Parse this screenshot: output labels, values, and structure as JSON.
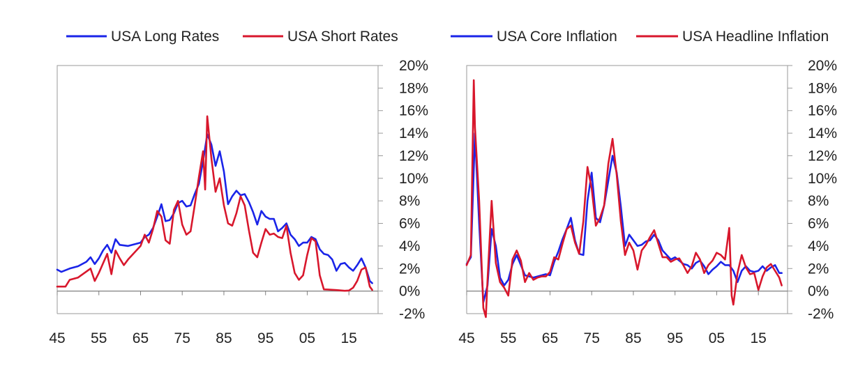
{
  "chart_data": [
    {
      "type": "line",
      "title": "",
      "xlabel": "",
      "ylabel": "",
      "xlim": [
        1945,
        2022
      ],
      "ylim": [
        -2,
        20
      ],
      "x_ticks": [
        1945,
        1955,
        1965,
        1975,
        1985,
        1995,
        2005,
        2015
      ],
      "x_tick_labels": [
        "45",
        "55",
        "65",
        "75",
        "85",
        "95",
        "05",
        "15"
      ],
      "y_ticks": [
        -2,
        0,
        2,
        4,
        6,
        8,
        10,
        12,
        14,
        16,
        18,
        20
      ],
      "y_tick_labels": [
        "-2%",
        "0%",
        "2%",
        "4%",
        "6%",
        "8%",
        "10%",
        "12%",
        "14%",
        "16%",
        "18%",
        "20%"
      ],
      "y_axis_side": "right",
      "legend": "top",
      "grid": false,
      "series": [
        {
          "name": "USA Long Rates",
          "color": "#1a24e8",
          "x": [
            1945,
            1946,
            1948,
            1950,
            1952,
            1953,
            1954,
            1955,
            1956,
            1957,
            1958,
            1959,
            1960,
            1962,
            1964,
            1965,
            1966,
            1967,
            1968,
            1969,
            1970,
            1971,
            1972,
            1973,
            1974,
            1975,
            1976,
            1977,
            1978,
            1979,
            1980,
            1981,
            1982,
            1983,
            1984,
            1985,
            1986,
            1987,
            1988,
            1989,
            1990,
            1991,
            1992,
            1993,
            1994,
            1995,
            1996,
            1997,
            1998,
            1999,
            2000,
            2001,
            2002,
            2003,
            2004,
            2005,
            2006,
            2007,
            2008,
            2009,
            2010,
            2011,
            2012,
            2013,
            2014,
            2015,
            2016,
            2017,
            2018,
            2019,
            2020,
            2020.6
          ],
          "y": [
            1.9,
            1.7,
            2.0,
            2.2,
            2.6,
            3.0,
            2.4,
            2.9,
            3.6,
            4.1,
            3.4,
            4.6,
            4.1,
            4.0,
            4.2,
            4.3,
            4.8,
            5.0,
            5.6,
            6.6,
            7.7,
            6.2,
            6.3,
            6.9,
            7.8,
            8.0,
            7.5,
            7.6,
            8.6,
            9.5,
            11.5,
            13.9,
            13.0,
            11.1,
            12.4,
            10.6,
            7.7,
            8.4,
            8.9,
            8.5,
            8.6,
            7.9,
            7.0,
            5.9,
            7.1,
            6.6,
            6.4,
            6.4,
            5.3,
            5.6,
            6.0,
            5.0,
            4.6,
            4.0,
            4.3,
            4.3,
            4.8,
            4.6,
            3.7,
            3.3,
            3.2,
            2.8,
            1.8,
            2.4,
            2.5,
            2.1,
            1.8,
            2.3,
            2.9,
            2.1,
            0.9,
            0.7
          ]
        },
        {
          "name": "USA Short Rates",
          "color": "#d8172c",
          "x": [
            1945,
            1947,
            1948,
            1950,
            1953,
            1954,
            1955,
            1957,
            1958,
            1959,
            1960,
            1961,
            1962,
            1964,
            1965,
            1966,
            1967,
            1968,
            1969,
            1970,
            1971,
            1972,
            1973,
            1974,
            1975,
            1976,
            1977,
            1978,
            1979,
            1980,
            1980.5,
            1981,
            1982,
            1983,
            1984,
            1985,
            1986,
            1987,
            1988,
            1989,
            1990,
            1991,
            1992,
            1993,
            1994,
            1995,
            1996,
            1997,
            1998,
            1999,
            2000,
            2001,
            2002,
            2003,
            2004,
            2005,
            2006,
            2007,
            2008,
            2009,
            2010,
            2012,
            2014,
            2015,
            2016,
            2017,
            2018,
            2019,
            2020,
            2020.6
          ],
          "y": [
            0.4,
            0.4,
            1.0,
            1.2,
            2.0,
            0.9,
            1.6,
            3.3,
            1.5,
            3.6,
            2.9,
            2.3,
            2.8,
            3.6,
            4.0,
            5.0,
            4.3,
            5.5,
            7.1,
            6.6,
            4.5,
            4.2,
            7.2,
            8.0,
            5.9,
            5.0,
            5.3,
            7.6,
            10.1,
            12.4,
            9.0,
            15.5,
            11.8,
            8.8,
            10.0,
            7.6,
            6.0,
            5.8,
            6.9,
            8.4,
            7.6,
            5.4,
            3.4,
            3.0,
            4.3,
            5.5,
            5.0,
            5.1,
            4.8,
            4.7,
            5.8,
            3.4,
            1.6,
            1.0,
            1.4,
            3.2,
            4.7,
            4.4,
            1.4,
            0.15,
            0.14,
            0.09,
            0.03,
            0.05,
            0.3,
            0.9,
            1.9,
            2.1,
            0.4,
            0.1
          ]
        }
      ]
    },
    {
      "type": "line",
      "title": "",
      "xlabel": "",
      "ylabel": "",
      "xlim": [
        1945,
        2022
      ],
      "ylim": [
        -2,
        20
      ],
      "x_ticks": [
        1945,
        1955,
        1965,
        1975,
        1985,
        1995,
        2005,
        2015
      ],
      "x_tick_labels": [
        "45",
        "55",
        "65",
        "75",
        "85",
        "95",
        "05",
        "15"
      ],
      "y_ticks": [
        -2,
        0,
        2,
        4,
        6,
        8,
        10,
        12,
        14,
        16,
        18,
        20
      ],
      "y_tick_labels": [
        "-2%",
        "0%",
        "2%",
        "4%",
        "6%",
        "8%",
        "10%",
        "12%",
        "14%",
        "16%",
        "18%",
        "20%"
      ],
      "y_axis_side": "right",
      "legend": "top",
      "grid": false,
      "series": [
        {
          "name": "USA Core Inflation",
          "color": "#1a24e8",
          "x": [
            1945,
            1946,
            1947,
            1948,
            1949,
            1950,
            1951,
            1952,
            1953,
            1954,
            1955,
            1956,
            1957,
            1958,
            1959,
            1960,
            1961,
            1962,
            1963,
            1964,
            1965,
            1966,
            1967,
            1968,
            1969,
            1970,
            1971,
            1972,
            1973,
            1974,
            1975,
            1976,
            1977,
            1978,
            1979,
            1980,
            1981,
            1982,
            1983,
            1984,
            1985,
            1986,
            1987,
            1988,
            1989,
            1990,
            1991,
            1992,
            1993,
            1994,
            1995,
            1996,
            1997,
            1998,
            1999,
            2000,
            2001,
            2002,
            2003,
            2004,
            2005,
            2006,
            2007,
            2008,
            2009,
            2010,
            2011,
            2012,
            2013,
            2014,
            2015,
            2016,
            2017,
            2018,
            2019,
            2020,
            2020.6
          ],
          "y": [
            2.4,
            3.0,
            14.0,
            6.0,
            -1.0,
            0.5,
            5.5,
            4.0,
            1.2,
            0.5,
            1.0,
            2.4,
            3.2,
            2.3,
            1.4,
            1.3,
            1.2,
            1.3,
            1.4,
            1.5,
            1.4,
            2.6,
            3.5,
            4.6,
            5.5,
            6.5,
            4.5,
            3.3,
            3.2,
            8.0,
            10.5,
            6.5,
            6.1,
            7.6,
            9.8,
            12.0,
            10.5,
            7.5,
            4.0,
            5.0,
            4.5,
            4.0,
            4.1,
            4.4,
            4.5,
            5.0,
            4.5,
            3.6,
            3.2,
            2.8,
            3.0,
            2.7,
            2.4,
            2.3,
            2.0,
            2.5,
            2.7,
            2.2,
            1.5,
            1.9,
            2.2,
            2.6,
            2.3,
            2.3,
            1.8,
            0.8,
            1.8,
            2.2,
            1.8,
            1.7,
            1.8,
            2.2,
            1.8,
            2.1,
            2.3,
            1.6,
            1.6
          ]
        },
        {
          "name": "USA Headline Inflation",
          "color": "#d8172c",
          "x": [
            1945,
            1946,
            1946.7,
            1947,
            1948,
            1949,
            1949.6,
            1950,
            1951,
            1952,
            1953,
            1954,
            1955,
            1956,
            1957,
            1958,
            1959,
            1960,
            1961,
            1962,
            1963,
            1964,
            1965,
            1966,
            1967,
            1968,
            1969,
            1970,
            1971,
            1972,
            1973,
            1974,
            1975,
            1976,
            1977,
            1978,
            1979,
            1980,
            1981,
            1982,
            1983,
            1984,
            1985,
            1986,
            1987,
            1988,
            1989,
            1990,
            1991,
            1992,
            1993,
            1994,
            1995,
            1996,
            1997,
            1998,
            1999,
            2000,
            2001,
            2002,
            2003,
            2004,
            2005,
            2006,
            2007,
            2008,
            2008.6,
            2009,
            2010,
            2011,
            2012,
            2013,
            2014,
            2015,
            2016,
            2017,
            2018,
            2019,
            2020,
            2020.6
          ],
          "y": [
            2.3,
            3.2,
            18.7,
            14.5,
            8.0,
            -1.5,
            -2.3,
            1.0,
            8.0,
            2.5,
            0.8,
            0.3,
            -0.4,
            2.8,
            3.6,
            2.7,
            0.8,
            1.6,
            1.0,
            1.2,
            1.3,
            1.3,
            1.7,
            3.0,
            2.8,
            4.2,
            5.5,
            5.8,
            4.3,
            3.3,
            6.2,
            11.0,
            9.1,
            5.8,
            6.5,
            7.6,
            11.3,
            13.5,
            10.3,
            6.2,
            3.2,
            4.3,
            3.6,
            1.9,
            3.6,
            4.1,
            4.8,
            5.4,
            4.2,
            3.0,
            3.0,
            2.6,
            2.8,
            2.9,
            2.3,
            1.6,
            2.2,
            3.4,
            2.8,
            1.6,
            2.3,
            2.7,
            3.4,
            3.2,
            2.8,
            5.6,
            -0.4,
            -1.2,
            1.6,
            3.2,
            2.1,
            1.5,
            1.6,
            0.1,
            1.3,
            2.1,
            2.4,
            1.8,
            1.2,
            0.5
          ]
        }
      ]
    }
  ]
}
